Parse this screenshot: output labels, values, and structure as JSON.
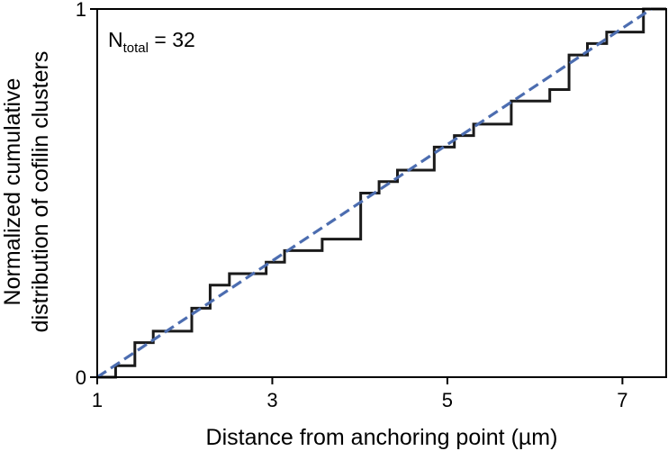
{
  "chart_data": {
    "type": "line",
    "title": "",
    "xlabel": "Distance from anchoring point (µm)",
    "ylabel_lines": [
      "Normalized cumulative",
      "distribution of cofilin clusters"
    ],
    "xlim": [
      1,
      7.5
    ],
    "ylim": [
      0,
      1
    ],
    "xticks": [
      1,
      3,
      5,
      7
    ],
    "xtick_labels": [
      "1",
      "3",
      "5",
      "7"
    ],
    "yticks": [
      0,
      1
    ],
    "ytick_labels": [
      "0",
      "1"
    ],
    "grid": false,
    "annotation": {
      "main": "N",
      "sub": "total",
      "rest": " = 32"
    },
    "colors": {
      "empirical": "#1a1a1a",
      "uniform": "#4c6db0"
    },
    "series": [
      {
        "style": "step",
        "x": [
          1.21,
          1.43,
          1.64,
          2.08,
          2.29,
          2.51,
          2.93,
          3.14,
          3.57,
          4.01,
          4.22,
          4.43,
          4.85,
          5.08,
          5.3,
          5.73,
          6.17,
          6.39,
          6.6,
          6.82,
          7.24
        ],
        "y": [
          0.03125,
          0.09375,
          0.125,
          0.1875,
          0.25,
          0.28125,
          0.3125,
          0.34375,
          0.375,
          0.5,
          0.53125,
          0.5625,
          0.625,
          0.65625,
          0.6875,
          0.75,
          0.78125,
          0.875,
          0.90625,
          0.9375,
          1.0
        ]
      },
      {
        "style": "dashed",
        "x": [
          1,
          7.33
        ],
        "y": [
          0,
          1
        ]
      }
    ]
  }
}
